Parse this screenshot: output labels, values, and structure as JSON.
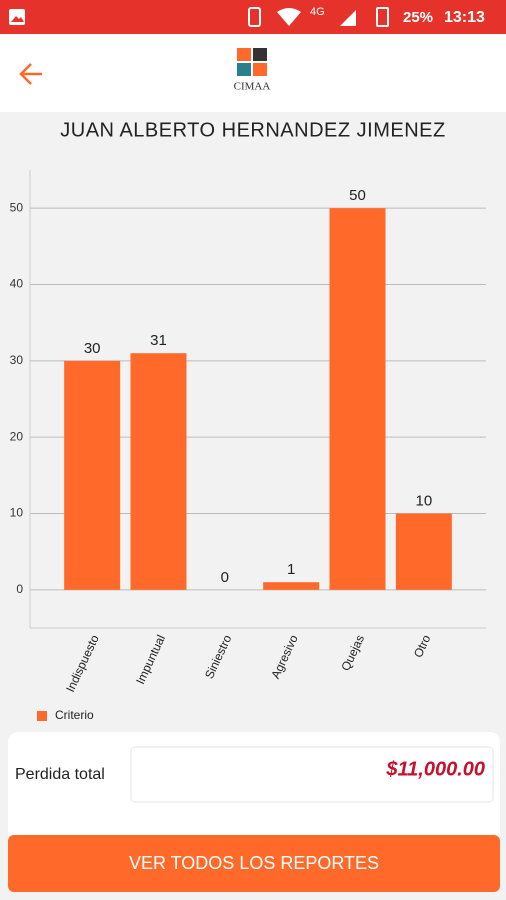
{
  "status_bar": {
    "network": "4G",
    "battery": "25%",
    "time": "13:13"
  },
  "header": {
    "logo_text": "CIMAA"
  },
  "chart_data": {
    "type": "bar",
    "title": "JUAN ALBERTO HERNANDEZ JIMENEZ",
    "categories": [
      "Indispuesto",
      "Impuntual",
      "Siniestro",
      "Agresivo",
      "Quejas",
      "Otro"
    ],
    "series": [
      {
        "name": "Criterio",
        "color": "#ff6a2b",
        "values": [
          30,
          31,
          0,
          1,
          50,
          10
        ]
      }
    ],
    "ylim": [
      -5,
      55
    ],
    "yticks": [
      0,
      10,
      20,
      30,
      40,
      50
    ],
    "grid": true,
    "legend": "bottom-left"
  },
  "summary": {
    "label": "Perdida total",
    "amount": "$11,000.00"
  },
  "button": {
    "label": "VER TODOS LOS REPORTES"
  }
}
